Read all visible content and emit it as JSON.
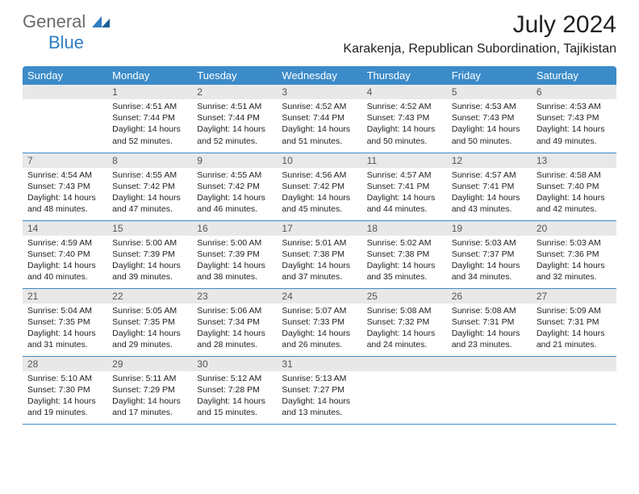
{
  "logo": {
    "general": "General",
    "blue": "Blue"
  },
  "title": "July 2024",
  "location": "Karakenja, Republican Subordination, Tajikistan",
  "colors": {
    "header_bg": "#3b8bc9",
    "header_text": "#ffffff",
    "daynum_bg": "#e8e8e8",
    "row_border": "#3b8bc9",
    "text": "#222222",
    "logo_gray": "#6b6b6b",
    "logo_blue": "#2f7ec2"
  },
  "weekdays": [
    "Sunday",
    "Monday",
    "Tuesday",
    "Wednesday",
    "Thursday",
    "Friday",
    "Saturday"
  ],
  "first_weekday_offset": 1,
  "days": [
    {
      "n": 1,
      "sr": "4:51 AM",
      "ss": "7:44 PM",
      "dl": "14 hours and 52 minutes."
    },
    {
      "n": 2,
      "sr": "4:51 AM",
      "ss": "7:44 PM",
      "dl": "14 hours and 52 minutes."
    },
    {
      "n": 3,
      "sr": "4:52 AM",
      "ss": "7:44 PM",
      "dl": "14 hours and 51 minutes."
    },
    {
      "n": 4,
      "sr": "4:52 AM",
      "ss": "7:43 PM",
      "dl": "14 hours and 50 minutes."
    },
    {
      "n": 5,
      "sr": "4:53 AM",
      "ss": "7:43 PM",
      "dl": "14 hours and 50 minutes."
    },
    {
      "n": 6,
      "sr": "4:53 AM",
      "ss": "7:43 PM",
      "dl": "14 hours and 49 minutes."
    },
    {
      "n": 7,
      "sr": "4:54 AM",
      "ss": "7:43 PM",
      "dl": "14 hours and 48 minutes."
    },
    {
      "n": 8,
      "sr": "4:55 AM",
      "ss": "7:42 PM",
      "dl": "14 hours and 47 minutes."
    },
    {
      "n": 9,
      "sr": "4:55 AM",
      "ss": "7:42 PM",
      "dl": "14 hours and 46 minutes."
    },
    {
      "n": 10,
      "sr": "4:56 AM",
      "ss": "7:42 PM",
      "dl": "14 hours and 45 minutes."
    },
    {
      "n": 11,
      "sr": "4:57 AM",
      "ss": "7:41 PM",
      "dl": "14 hours and 44 minutes."
    },
    {
      "n": 12,
      "sr": "4:57 AM",
      "ss": "7:41 PM",
      "dl": "14 hours and 43 minutes."
    },
    {
      "n": 13,
      "sr": "4:58 AM",
      "ss": "7:40 PM",
      "dl": "14 hours and 42 minutes."
    },
    {
      "n": 14,
      "sr": "4:59 AM",
      "ss": "7:40 PM",
      "dl": "14 hours and 40 minutes."
    },
    {
      "n": 15,
      "sr": "5:00 AM",
      "ss": "7:39 PM",
      "dl": "14 hours and 39 minutes."
    },
    {
      "n": 16,
      "sr": "5:00 AM",
      "ss": "7:39 PM",
      "dl": "14 hours and 38 minutes."
    },
    {
      "n": 17,
      "sr": "5:01 AM",
      "ss": "7:38 PM",
      "dl": "14 hours and 37 minutes."
    },
    {
      "n": 18,
      "sr": "5:02 AM",
      "ss": "7:38 PM",
      "dl": "14 hours and 35 minutes."
    },
    {
      "n": 19,
      "sr": "5:03 AM",
      "ss": "7:37 PM",
      "dl": "14 hours and 34 minutes."
    },
    {
      "n": 20,
      "sr": "5:03 AM",
      "ss": "7:36 PM",
      "dl": "14 hours and 32 minutes."
    },
    {
      "n": 21,
      "sr": "5:04 AM",
      "ss": "7:35 PM",
      "dl": "14 hours and 31 minutes."
    },
    {
      "n": 22,
      "sr": "5:05 AM",
      "ss": "7:35 PM",
      "dl": "14 hours and 29 minutes."
    },
    {
      "n": 23,
      "sr": "5:06 AM",
      "ss": "7:34 PM",
      "dl": "14 hours and 28 minutes."
    },
    {
      "n": 24,
      "sr": "5:07 AM",
      "ss": "7:33 PM",
      "dl": "14 hours and 26 minutes."
    },
    {
      "n": 25,
      "sr": "5:08 AM",
      "ss": "7:32 PM",
      "dl": "14 hours and 24 minutes."
    },
    {
      "n": 26,
      "sr": "5:08 AM",
      "ss": "7:31 PM",
      "dl": "14 hours and 23 minutes."
    },
    {
      "n": 27,
      "sr": "5:09 AM",
      "ss": "7:31 PM",
      "dl": "14 hours and 21 minutes."
    },
    {
      "n": 28,
      "sr": "5:10 AM",
      "ss": "7:30 PM",
      "dl": "14 hours and 19 minutes."
    },
    {
      "n": 29,
      "sr": "5:11 AM",
      "ss": "7:29 PM",
      "dl": "14 hours and 17 minutes."
    },
    {
      "n": 30,
      "sr": "5:12 AM",
      "ss": "7:28 PM",
      "dl": "14 hours and 15 minutes."
    },
    {
      "n": 31,
      "sr": "5:13 AM",
      "ss": "7:27 PM",
      "dl": "14 hours and 13 minutes."
    }
  ],
  "labels": {
    "sunrise": "Sunrise:",
    "sunset": "Sunset:",
    "daylight": "Daylight:"
  }
}
